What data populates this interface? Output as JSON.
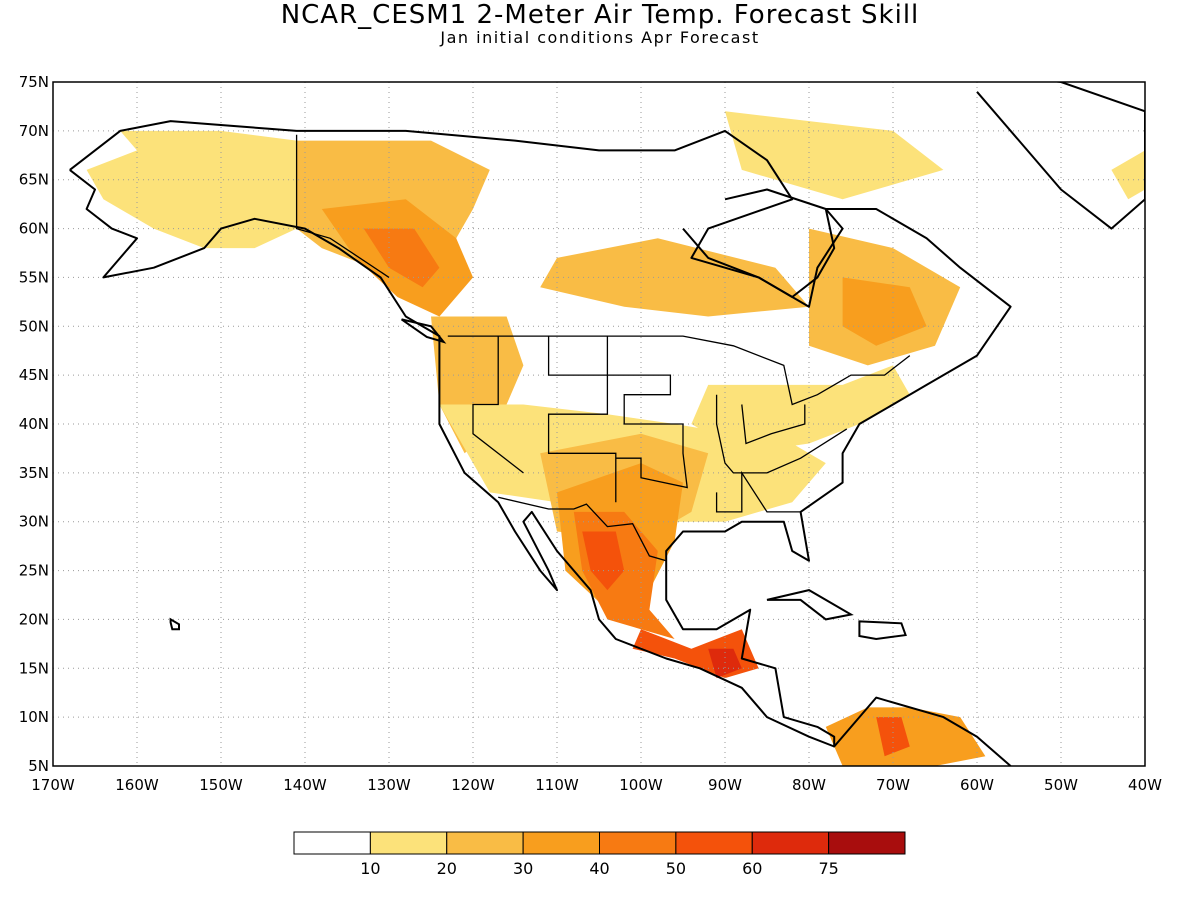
{
  "title": "NCAR_CESM1 2-Meter Air Temp. Forecast Skill",
  "subtitle": "Jan initial conditions  Apr Forecast",
  "map": {
    "lon_range": [
      -170,
      -40
    ],
    "lat_range": [
      5,
      75
    ],
    "lat_labels": [
      "5N",
      "10N",
      "15N",
      "20N",
      "25N",
      "30N",
      "35N",
      "40N",
      "45N",
      "50N",
      "55N",
      "60N",
      "65N",
      "70N",
      "75N"
    ],
    "lon_labels": [
      "170W",
      "160W",
      "150W",
      "140W",
      "130W",
      "120W",
      "110W",
      "100W",
      "90W",
      "80W",
      "70W",
      "60W",
      "50W",
      "40W"
    ],
    "gridlines": "dotted"
  },
  "colorbar": {
    "colors": [
      "#ffffff",
      "#fce27a",
      "#f9bc45",
      "#f89e1e",
      "#f77a12",
      "#f4520b",
      "#de2a0c",
      "#a80d0d"
    ],
    "labels": [
      "10",
      "20",
      "30",
      "40",
      "50",
      "60",
      "75"
    ]
  },
  "regions": [
    {
      "name": "alaska-west",
      "color": "#fce27a",
      "lonlat": [
        [
          -162,
          70
        ],
        [
          -150,
          70
        ],
        [
          -141,
          69
        ],
        [
          -141,
          60
        ],
        [
          -146,
          58
        ],
        [
          -152,
          58
        ],
        [
          -158,
          60
        ],
        [
          -164,
          63
        ],
        [
          -166,
          66
        ],
        [
          -160,
          68
        ]
      ]
    },
    {
      "name": "yukon",
      "color": "#f9bc45",
      "lonlat": [
        [
          -141,
          69
        ],
        [
          -125,
          69
        ],
        [
          -118,
          66
        ],
        [
          -120,
          62
        ],
        [
          -124,
          56
        ],
        [
          -132,
          56
        ],
        [
          -138,
          58
        ],
        [
          -141,
          60
        ]
      ]
    },
    {
      "name": "bc-coast",
      "color": "#f89e1e",
      "lonlat": [
        [
          -138,
          62
        ],
        [
          -128,
          63
        ],
        [
          -122,
          59
        ],
        [
          -120,
          55
        ],
        [
          -124,
          51
        ],
        [
          -129,
          53
        ],
        [
          -134,
          57
        ]
      ]
    },
    {
      "name": "bc-core",
      "color": "#f77a12",
      "lonlat": [
        [
          -133,
          60
        ],
        [
          -127,
          60
        ],
        [
          -124,
          56
        ],
        [
          -126,
          54
        ],
        [
          -130,
          56
        ]
      ]
    },
    {
      "name": "pacific-nw",
      "color": "#f9bc45",
      "lonlat": [
        [
          -125,
          51
        ],
        [
          -116,
          51
        ],
        [
          -114,
          46
        ],
        [
          -117,
          40
        ],
        [
          -121,
          37
        ],
        [
          -124,
          42
        ]
      ]
    },
    {
      "name": "hudson-band",
      "color": "#f9bc45",
      "lonlat": [
        [
          -110,
          57
        ],
        [
          -98,
          59
        ],
        [
          -84,
          56
        ],
        [
          -80,
          52
        ],
        [
          -92,
          51
        ],
        [
          -102,
          52
        ],
        [
          -112,
          54
        ]
      ]
    },
    {
      "name": "quebec",
      "color": "#f9bc45",
      "lonlat": [
        [
          -80,
          60
        ],
        [
          -70,
          58
        ],
        [
          -62,
          54
        ],
        [
          -65,
          48
        ],
        [
          -73,
          46
        ],
        [
          -80,
          48
        ]
      ]
    },
    {
      "name": "quebec-core",
      "color": "#f89e1e",
      "lonlat": [
        [
          -76,
          55
        ],
        [
          -68,
          54
        ],
        [
          -66,
          50
        ],
        [
          -72,
          48
        ],
        [
          -76,
          50
        ]
      ]
    },
    {
      "name": "arctic-east",
      "color": "#fce27a",
      "lonlat": [
        [
          -90,
          72
        ],
        [
          -70,
          70
        ],
        [
          -64,
          66
        ],
        [
          -76,
          63
        ],
        [
          -88,
          66
        ]
      ]
    },
    {
      "name": "southwest-us",
      "color": "#fce27a",
      "lonlat": [
        [
          -124,
          42
        ],
        [
          -114,
          42
        ],
        [
          -104,
          41
        ],
        [
          -96,
          40
        ],
        [
          -82,
          38
        ],
        [
          -78,
          36
        ],
        [
          -82,
          32
        ],
        [
          -90,
          30
        ],
        [
          -98,
          30
        ],
        [
          -110,
          32
        ],
        [
          -118,
          33
        ]
      ]
    },
    {
      "name": "east-us",
      "color": "#fce27a",
      "lonlat": [
        [
          -92,
          44
        ],
        [
          -84,
          44
        ],
        [
          -76,
          44
        ],
        [
          -70,
          46
        ],
        [
          -68,
          43
        ],
        [
          -74,
          40
        ],
        [
          -80,
          38
        ],
        [
          -88,
          37
        ],
        [
          -94,
          40
        ]
      ]
    },
    {
      "name": "southern-plains",
      "color": "#f9bc45",
      "lonlat": [
        [
          -112,
          37
        ],
        [
          -100,
          39
        ],
        [
          -92,
          37
        ],
        [
          -94,
          31
        ],
        [
          -100,
          28
        ],
        [
          -110,
          29
        ]
      ]
    },
    {
      "name": "texas-mexico",
      "color": "#f89e1e",
      "lonlat": [
        [
          -110,
          33
        ],
        [
          -100,
          36
        ],
        [
          -95,
          34
        ],
        [
          -96,
          28
        ],
        [
          -99,
          23
        ],
        [
          -104,
          21
        ],
        [
          -109,
          25
        ]
      ]
    },
    {
      "name": "mexico-core",
      "color": "#f77a12",
      "lonlat": [
        [
          -108,
          31
        ],
        [
          -102,
          31
        ],
        [
          -98,
          27
        ],
        [
          -99,
          21
        ],
        [
          -96,
          18
        ],
        [
          -104,
          20
        ],
        [
          -107,
          25
        ]
      ]
    },
    {
      "name": "mexico-peak",
      "color": "#f4520b",
      "lonlat": [
        [
          -107,
          29
        ],
        [
          -103,
          29
        ],
        [
          -102,
          25
        ],
        [
          -104,
          23
        ],
        [
          -106,
          25
        ]
      ]
    },
    {
      "name": "central-america",
      "color": "#f4520b",
      "lonlat": [
        [
          -100,
          19
        ],
        [
          -94,
          17
        ],
        [
          -88,
          19
        ],
        [
          -86,
          15
        ],
        [
          -90,
          14
        ],
        [
          -96,
          16
        ],
        [
          -101,
          17
        ]
      ]
    },
    {
      "name": "central-america-peak",
      "color": "#de2a0c",
      "lonlat": [
        [
          -92,
          17
        ],
        [
          -89,
          17
        ],
        [
          -88,
          15
        ],
        [
          -91,
          14
        ]
      ]
    },
    {
      "name": "south-america",
      "color": "#f89e1e",
      "lonlat": [
        [
          -78,
          9
        ],
        [
          -73,
          11
        ],
        [
          -68,
          11
        ],
        [
          -62,
          10
        ],
        [
          -59,
          6
        ],
        [
          -65,
          5
        ],
        [
          -76,
          5
        ]
      ]
    },
    {
      "name": "south-america-peak",
      "color": "#f4520b",
      "lonlat": [
        [
          -72,
          10
        ],
        [
          -69,
          10
        ],
        [
          -68,
          7
        ],
        [
          -71,
          6
        ]
      ]
    },
    {
      "name": "greenland-edge",
      "color": "#fce27a",
      "lonlat": [
        [
          -44,
          66
        ],
        [
          -40,
          68
        ],
        [
          -40,
          64
        ],
        [
          -42,
          63
        ]
      ]
    }
  ],
  "coastlines": [
    {
      "name": "north-america-coast",
      "lonlat": [
        [
          -168,
          66
        ],
        [
          -162,
          70
        ],
        [
          -156,
          71
        ],
        [
          -141,
          70
        ],
        [
          -128,
          70
        ],
        [
          -115,
          69
        ],
        [
          -105,
          68
        ],
        [
          -96,
          68
        ],
        [
          -90,
          70
        ],
        [
          -85,
          67
        ],
        [
          -82,
          63
        ],
        [
          -92,
          60
        ],
        [
          -94,
          57
        ],
        [
          -86,
          55
        ],
        [
          -80,
          52
        ],
        [
          -79,
          56
        ],
        [
          -76,
          60
        ],
        [
          -78,
          62
        ],
        [
          -72,
          62
        ],
        [
          -66,
          59
        ],
        [
          -62,
          56
        ],
        [
          -56,
          52
        ],
        [
          -60,
          47
        ],
        [
          -64,
          45
        ],
        [
          -66,
          44
        ],
        [
          -70,
          42
        ],
        [
          -74,
          40
        ],
        [
          -76,
          37
        ],
        [
          -76,
          34
        ],
        [
          -81,
          31
        ],
        [
          -80,
          26
        ],
        [
          -82,
          27
        ],
        [
          -83,
          30
        ],
        [
          -88,
          30
        ],
        [
          -90,
          29
        ],
        [
          -95,
          29
        ],
        [
          -97,
          27
        ],
        [
          -97,
          22
        ],
        [
          -95,
          19
        ],
        [
          -91,
          19
        ],
        [
          -87,
          21
        ],
        [
          -88,
          16
        ],
        [
          -84,
          15
        ],
        [
          -83,
          10
        ],
        [
          -79,
          9
        ],
        [
          -77,
          8
        ],
        [
          -77,
          7
        ],
        [
          -72,
          12
        ],
        [
          -64,
          10
        ],
        [
          -60,
          8
        ],
        [
          -56,
          5
        ]
      ]
    },
    {
      "name": "pacific-coast",
      "lonlat": [
        [
          -77,
          7
        ],
        [
          -80,
          8
        ],
        [
          -85,
          10
        ],
        [
          -88,
          13
        ],
        [
          -93,
          15
        ],
        [
          -97,
          16
        ],
        [
          -103,
          18
        ],
        [
          -105,
          20
        ],
        [
          -106,
          23
        ],
        [
          -110,
          27
        ],
        [
          -113,
          31
        ],
        [
          -114,
          30
        ],
        [
          -111,
          25
        ],
        [
          -110,
          23
        ],
        [
          -112,
          25
        ],
        [
          -115,
          29
        ],
        [
          -117,
          32
        ],
        [
          -121,
          35
        ],
        [
          -124,
          40
        ],
        [
          -124,
          46
        ],
        [
          -124,
          49
        ],
        [
          -128,
          51
        ],
        [
          -131,
          55
        ],
        [
          -136,
          58
        ],
        [
          -140,
          60
        ],
        [
          -146,
          61
        ],
        [
          -150,
          60
        ],
        [
          -152,
          58
        ],
        [
          -158,
          56
        ],
        [
          -164,
          55
        ],
        [
          -160,
          59
        ],
        [
          -163,
          60
        ],
        [
          -166,
          62
        ],
        [
          -165,
          64
        ],
        [
          -168,
          66
        ]
      ]
    },
    {
      "name": "hudson-bay",
      "lonlat": [
        [
          -95,
          60
        ],
        [
          -92,
          57
        ],
        [
          -86,
          55
        ],
        [
          -82,
          53
        ],
        [
          -79,
          55
        ],
        [
          -77,
          58
        ],
        [
          -78,
          62
        ],
        [
          -85,
          64
        ],
        [
          -90,
          63
        ]
      ]
    },
    {
      "name": "greenland",
      "lonlat": [
        [
          -70,
          77
        ],
        [
          -60,
          76
        ],
        [
          -50,
          75
        ],
        [
          -40,
          72
        ],
        [
          -40,
          63
        ],
        [
          -44,
          60
        ],
        [
          -50,
          64
        ],
        [
          -54,
          68
        ],
        [
          -60,
          74
        ]
      ]
    }
  ],
  "boundaries": [
    {
      "name": "us-canada-border",
      "lonlat": [
        [
          -123,
          49
        ],
        [
          -95,
          49
        ],
        [
          -89,
          48
        ],
        [
          -83,
          46
        ],
        [
          -82,
          42
        ],
        [
          -79,
          43
        ],
        [
          -75,
          45
        ],
        [
          -71,
          45
        ],
        [
          -68,
          47
        ]
      ]
    },
    {
      "name": "alaska-border",
      "lonlat": [
        [
          -141,
          69.6
        ],
        [
          -141,
          60
        ],
        [
          -137,
          59
        ],
        [
          -130,
          55
        ]
      ]
    },
    {
      "name": "us-mexico-border",
      "lonlat": [
        [
          -117,
          32.5
        ],
        [
          -111,
          31.3
        ],
        [
          -108,
          31.3
        ],
        [
          -106.5,
          31.8
        ],
        [
          -104,
          29.5
        ],
        [
          -101,
          29.8
        ],
        [
          -99,
          26.5
        ],
        [
          -97,
          26
        ]
      ]
    },
    {
      "name": "state-line-1",
      "lonlat": [
        [
          -117,
          49
        ],
        [
          -117,
          42
        ],
        [
          -120,
          42
        ],
        [
          -120,
          39
        ],
        [
          -114,
          35
        ]
      ]
    },
    {
      "name": "state-line-2",
      "lonlat": [
        [
          -111,
          49
        ],
        [
          -111,
          45
        ],
        [
          -104,
          45
        ],
        [
          -104,
          41
        ],
        [
          -111,
          41
        ],
        [
          -111,
          37
        ],
        [
          -103,
          37
        ],
        [
          -103,
          32
        ]
      ]
    },
    {
      "name": "state-line-3",
      "lonlat": [
        [
          -104,
          49
        ],
        [
          -104,
          45
        ],
        [
          -96.5,
          45
        ],
        [
          -96.5,
          43
        ],
        [
          -102,
          43
        ],
        [
          -102,
          40
        ],
        [
          -95,
          40
        ],
        [
          -95,
          37
        ],
        [
          -94.5,
          33.5
        ],
        [
          -100,
          34.5
        ],
        [
          -100,
          36.5
        ],
        [
          -103,
          36.5
        ]
      ]
    },
    {
      "name": "state-line-4",
      "lonlat": [
        [
          -91,
          43
        ],
        [
          -91,
          40
        ],
        [
          -90,
          36
        ],
        [
          -89,
          35
        ],
        [
          -85,
          35
        ],
        [
          -81,
          36.5
        ],
        [
          -75.5,
          39.5
        ]
      ]
    },
    {
      "name": "state-line-5",
      "lonlat": [
        [
          -88,
          42
        ],
        [
          -87.5,
          38
        ],
        [
          -84.5,
          39
        ],
        [
          -80.5,
          40
        ],
        [
          -80.5,
          42
        ]
      ]
    },
    {
      "name": "state-line-6",
      "lonlat": [
        [
          -91,
          33
        ],
        [
          -91,
          31
        ],
        [
          -88,
          31
        ],
        [
          -88,
          35
        ],
        [
          -85,
          31
        ],
        [
          -81,
          31
        ]
      ]
    }
  ],
  "islands": [
    {
      "name": "hawaii",
      "lonlat": [
        [
          -156,
          20
        ],
        [
          -155,
          19.5
        ],
        [
          -155,
          19
        ],
        [
          -155.8,
          19
        ],
        [
          -156,
          19.7
        ]
      ]
    },
    {
      "name": "cuba",
      "lonlat": [
        [
          -85,
          22
        ],
        [
          -80,
          23
        ],
        [
          -75,
          20.5
        ],
        [
          -78,
          20
        ],
        [
          -81,
          22
        ]
      ]
    },
    {
      "name": "hispaniola",
      "lonlat": [
        [
          -74,
          19.8
        ],
        [
          -69,
          19.6
        ],
        [
          -68.5,
          18.4
        ],
        [
          -72,
          18
        ],
        [
          -74,
          18.3
        ]
      ]
    },
    {
      "name": "vancouver-island",
      "lonlat": [
        [
          -128.5,
          50.7
        ],
        [
          -125,
          50
        ],
        [
          -123.5,
          48.4
        ],
        [
          -125.5,
          48.9
        ]
      ]
    }
  ]
}
